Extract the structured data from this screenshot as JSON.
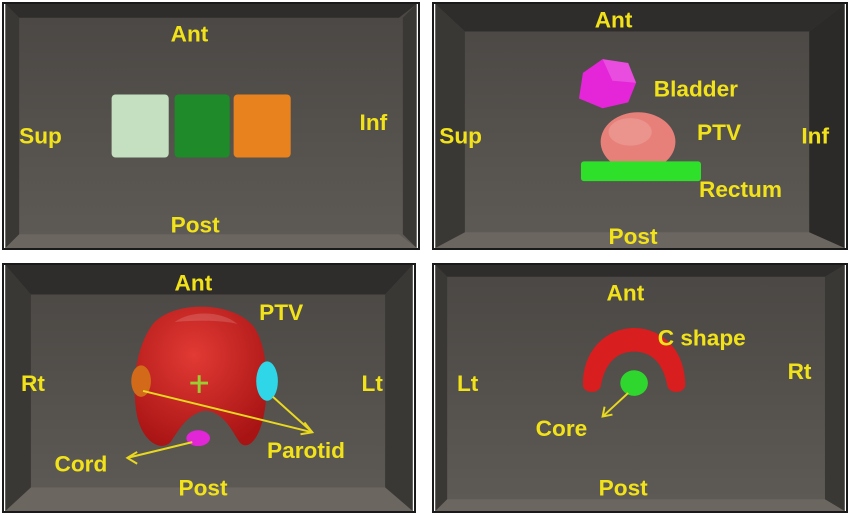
{
  "panels": [
    {
      "labels": {
        "ant": "Ant",
        "post": "Post",
        "left": "Sup",
        "right": "Inf"
      },
      "structures": [
        {
          "name": "light-green-cube",
          "color": "#b9d9b4"
        },
        {
          "name": "green-cube",
          "color": "#1e8a2a"
        },
        {
          "name": "orange-cube",
          "color": "#e8821e"
        }
      ]
    },
    {
      "labels": {
        "ant": "Ant",
        "post": "Post",
        "left": "Sup",
        "right": "Inf"
      },
      "structures": [
        {
          "name": "bladder",
          "label": "Bladder",
          "color": "#e426d8"
        },
        {
          "name": "ptv",
          "label": "PTV",
          "color": "#e8807a"
        },
        {
          "name": "rectum",
          "label": "Rectum",
          "color": "#2ee02a"
        }
      ]
    },
    {
      "labels": {
        "ant": "Ant",
        "post": "Post",
        "left": "Rt",
        "right": "Lt"
      },
      "structures": [
        {
          "name": "ptv",
          "label": "PTV",
          "color": "#c81e1e"
        },
        {
          "name": "parotid",
          "label": "Parotid",
          "color": "#2fd6e8"
        },
        {
          "name": "cord",
          "label": "Cord",
          "color": "#e026d6"
        }
      ]
    },
    {
      "labels": {
        "ant": "Ant",
        "post": "Post",
        "left": "Lt",
        "right": "Rt"
      },
      "structures": [
        {
          "name": "c-shape",
          "label": "C shape",
          "color": "#d81e1e"
        },
        {
          "name": "core",
          "label": "Core",
          "color": "#2ed62e"
        }
      ]
    }
  ],
  "colors": {
    "label": "#f2e21a",
    "background": "#5b5752",
    "frame": "#3c3935"
  }
}
